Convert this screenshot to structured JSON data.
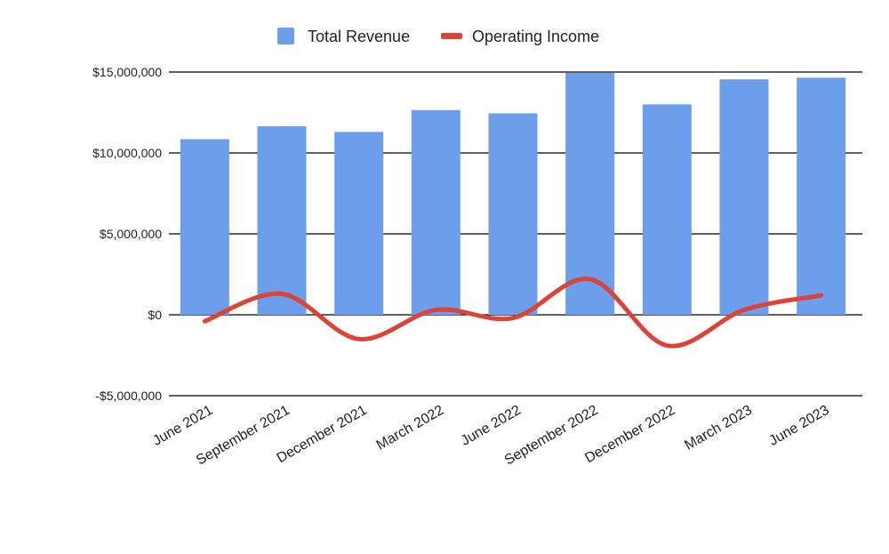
{
  "chart_data": {
    "type": "bar",
    "title": "",
    "xlabel": "",
    "ylabel": "",
    "categories": [
      "June 2021",
      "September 2021",
      "December 2021",
      "March 2022",
      "June 2022",
      "September 2022",
      "December 2022",
      "March 2023",
      "June 2023"
    ],
    "series": [
      {
        "name": "Total Revenue",
        "type": "bar",
        "color": "#6d9eeb",
        "values": [
          10850000,
          11650000,
          11300000,
          12650000,
          12450000,
          14950000,
          13000000,
          14550000,
          14650000
        ]
      },
      {
        "name": "Operating Income",
        "type": "line",
        "smooth": true,
        "color": "#db4437",
        "values": [
          -400000,
          1300000,
          -1500000,
          300000,
          -200000,
          2200000,
          -1900000,
          300000,
          1200000
        ]
      }
    ],
    "ylim": [
      -5000000,
      15000000
    ],
    "yticks": [
      -5000000,
      0,
      5000000,
      10000000,
      15000000
    ],
    "ytick_labels": [
      "-$5,000,000",
      "$0",
      "$5,000,000",
      "$10,000,000",
      "$15,000,000"
    ],
    "grid": true,
    "legend_position": "top-center"
  }
}
